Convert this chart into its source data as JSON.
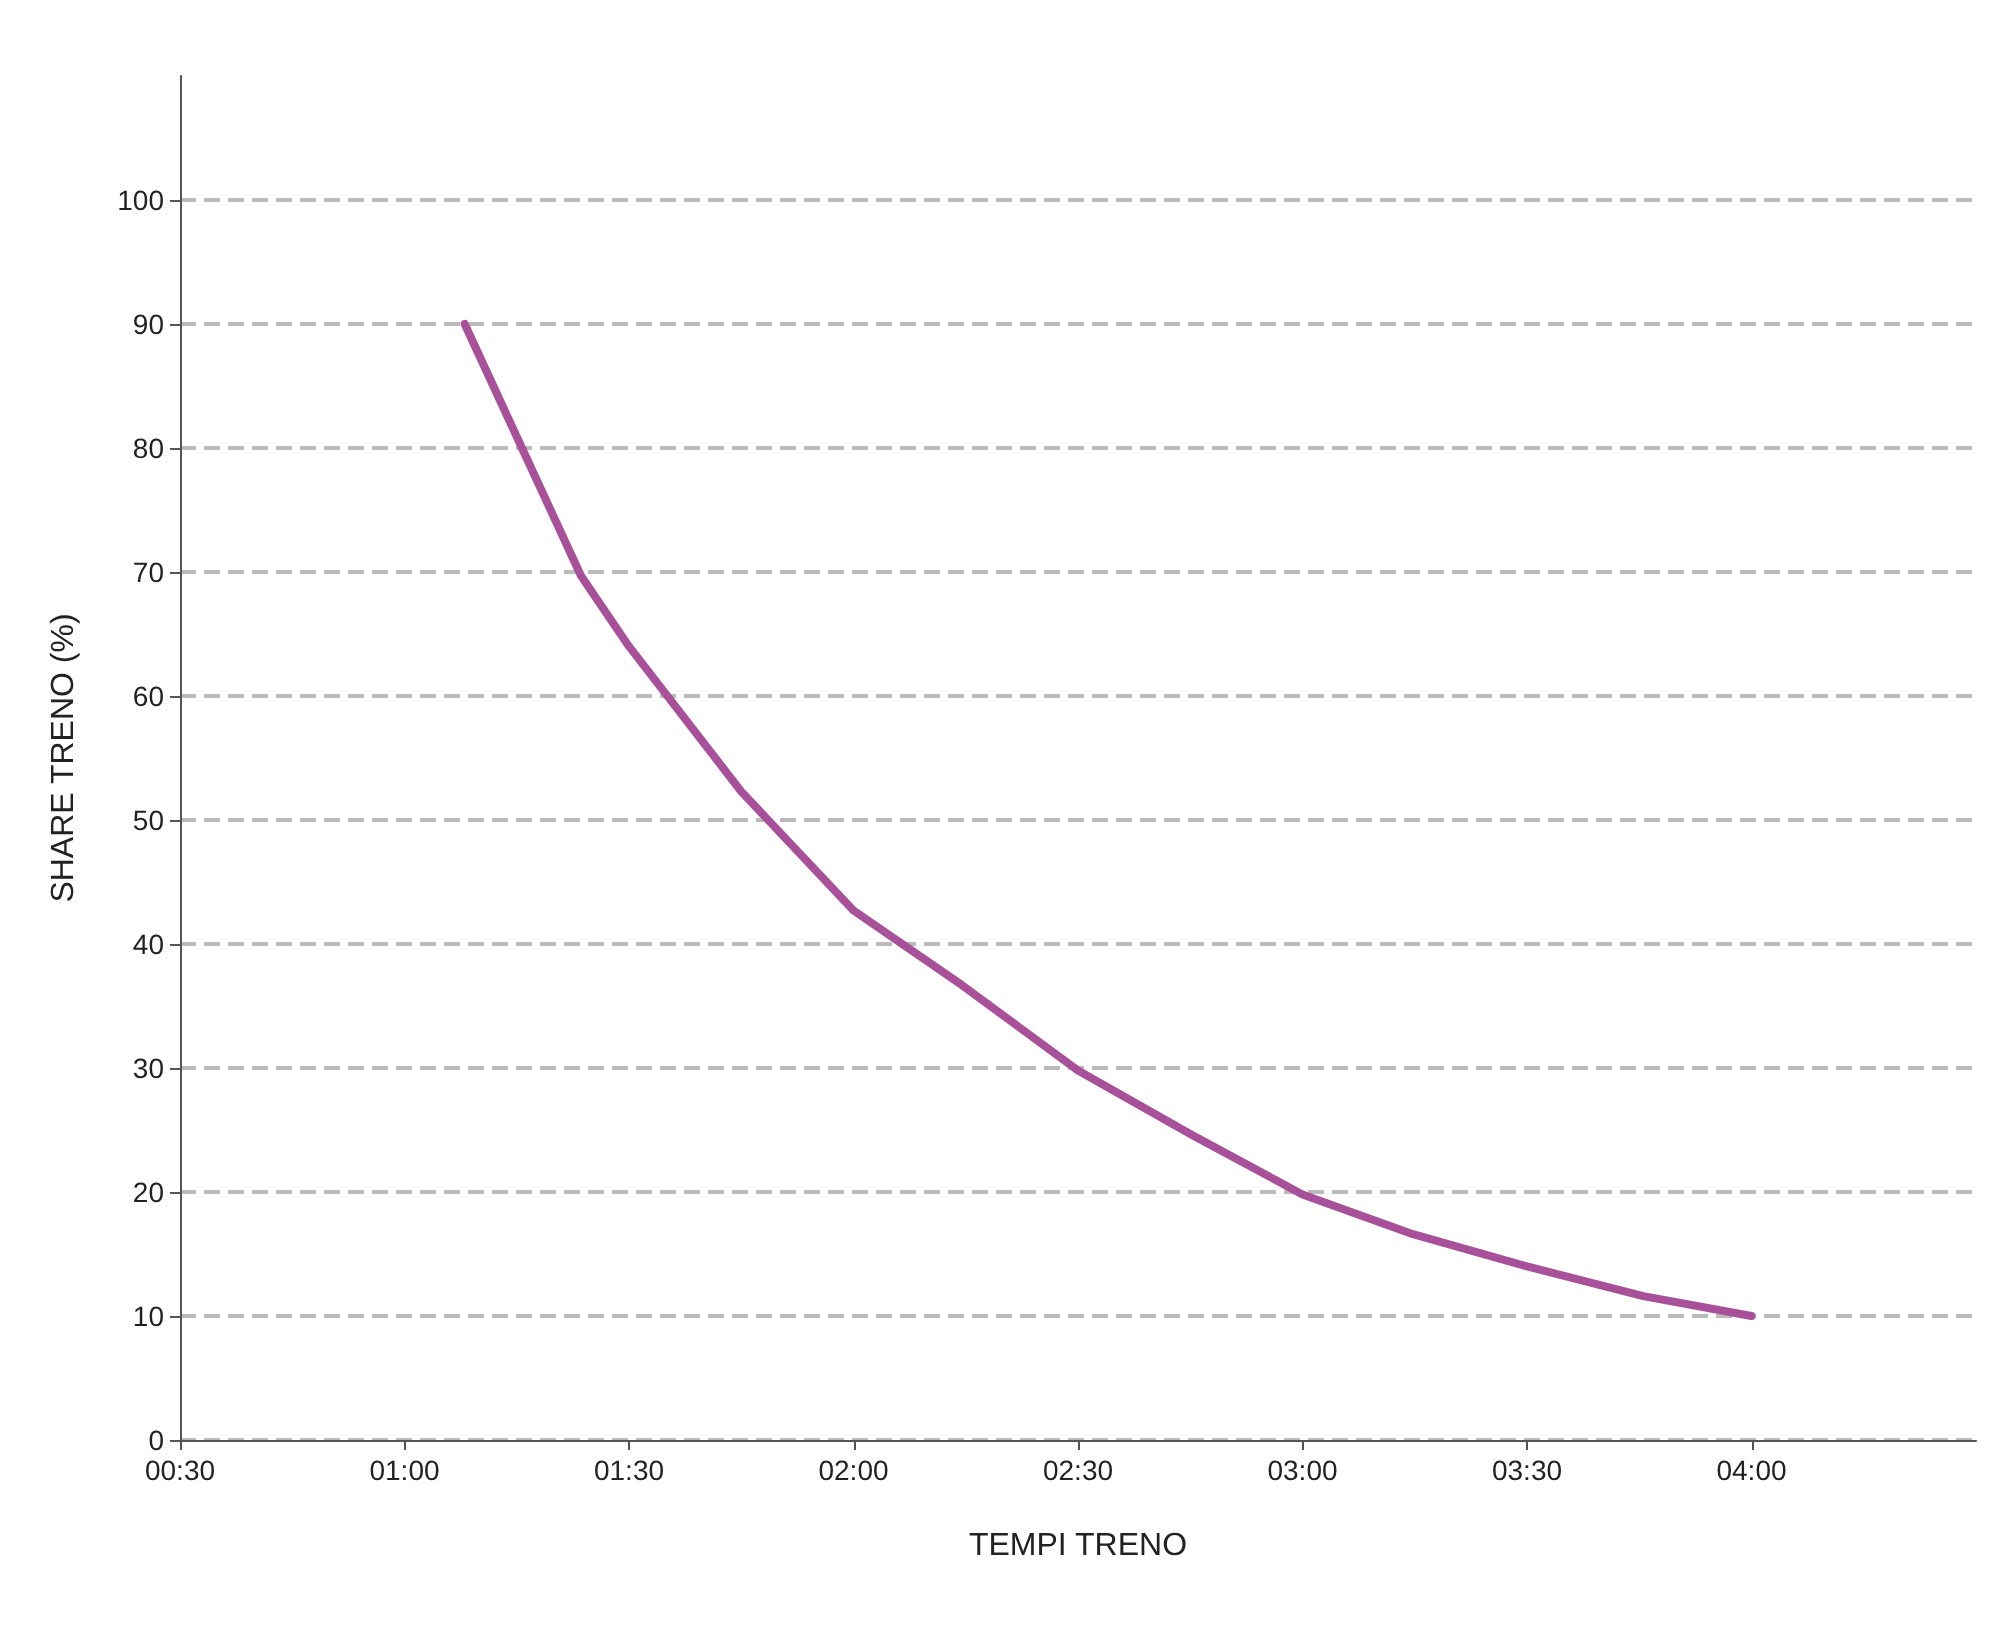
{
  "chart_data": {
    "type": "line",
    "xlabel": "TEMPI TRENO",
    "ylabel": "SHARE TRENO (%)",
    "x": [
      1.134,
      1.259,
      1.393,
      1.5,
      1.75,
      2.0,
      2.241,
      2.5,
      2.754,
      3.0,
      3.246,
      3.5,
      3.759,
      4.0
    ],
    "series": [
      {
        "color": "#a8519a",
        "values": [
          90,
          80.2,
          69.7,
          64,
          52.3,
          42.7,
          36.7,
          29.8,
          24.6,
          19.8,
          16.6,
          14,
          11.6,
          10
        ]
      }
    ],
    "xlim": [
      0.5,
      4.5
    ],
    "xticks": [
      {
        "value": 0.5,
        "label": "00:30"
      },
      {
        "value": 1,
        "label": "01:00"
      },
      {
        "value": 1.5,
        "label": "01:30"
      },
      {
        "value": 2,
        "label": "02:00"
      },
      {
        "value": 2.5,
        "label": "02:30"
      },
      {
        "value": 3,
        "label": "03:00"
      },
      {
        "value": 3.5,
        "label": "03:30"
      },
      {
        "value": 4,
        "label": "04:00"
      }
    ],
    "ylim": [
      0,
      110
    ],
    "yticks": [
      0,
      10,
      20,
      30,
      40,
      50,
      60,
      70,
      80,
      90,
      100
    ],
    "grid": "y",
    "marker": "none",
    "line_style": "solid"
  }
}
